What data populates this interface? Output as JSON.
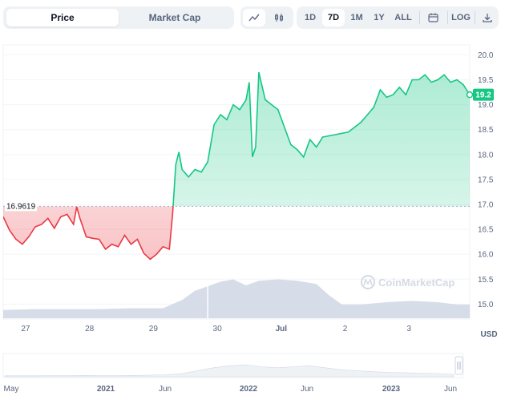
{
  "toolbar": {
    "metric_tabs": [
      {
        "label": "Price",
        "active": true
      },
      {
        "label": "Market Cap",
        "active": false
      }
    ],
    "chart_type_icons": [
      "line-chart-icon",
      "candlestick-icon"
    ],
    "ranges": [
      {
        "label": "1D",
        "active": false
      },
      {
        "label": "7D",
        "active": true
      },
      {
        "label": "1M",
        "active": false
      },
      {
        "label": "1Y",
        "active": false
      },
      {
        "label": "ALL",
        "active": false
      }
    ],
    "calendar_icon": "calendar-icon",
    "log_label": "LOG",
    "download_icon": "download-icon"
  },
  "colors": {
    "up": "#16c784",
    "down": "#ea3943",
    "volume": "#cfd6e4",
    "accent": "#16c784"
  },
  "chart_data": {
    "type": "line",
    "ylabel": "USD",
    "ylim": [
      14.7,
      20.2
    ],
    "y_ticks": [
      "20.0",
      "19.5",
      "19.0",
      "18.5",
      "18.0",
      "17.5",
      "17.0",
      "16.5",
      "16.0",
      "15.5",
      "15.0"
    ],
    "x_ticks": [
      "27",
      "28",
      "29",
      "30",
      "Jul",
      "2",
      "3"
    ],
    "xlim": [
      0,
      7.3
    ],
    "reference_value": "16.9619",
    "current_value": "19.2",
    "watermark": "CoinMarketCap",
    "series": [
      {
        "points": [
          [
            0.0,
            16.75
          ],
          [
            0.1,
            16.48
          ],
          [
            0.2,
            16.3
          ],
          [
            0.3,
            16.2
          ],
          [
            0.4,
            16.35
          ],
          [
            0.5,
            16.55
          ],
          [
            0.6,
            16.6
          ],
          [
            0.7,
            16.72
          ],
          [
            0.8,
            16.52
          ],
          [
            0.9,
            16.75
          ],
          [
            1.0,
            16.8
          ],
          [
            1.1,
            16.6
          ],
          [
            1.15,
            16.95
          ],
          [
            1.2,
            16.72
          ],
          [
            1.3,
            16.35
          ],
          [
            1.4,
            16.32
          ],
          [
            1.5,
            16.3
          ],
          [
            1.6,
            16.1
          ],
          [
            1.7,
            16.2
          ],
          [
            1.8,
            16.15
          ],
          [
            1.9,
            16.38
          ],
          [
            2.0,
            16.2
          ],
          [
            2.1,
            16.3
          ],
          [
            2.2,
            16.02
          ],
          [
            2.3,
            15.9
          ],
          [
            2.4,
            16.0
          ],
          [
            2.5,
            16.15
          ],
          [
            2.6,
            16.1
          ],
          [
            2.65,
            16.8
          ],
          [
            2.7,
            17.8
          ],
          [
            2.75,
            18.05
          ],
          [
            2.8,
            17.7
          ],
          [
            2.9,
            17.55
          ],
          [
            3.0,
            17.7
          ],
          [
            3.1,
            17.65
          ],
          [
            3.2,
            17.85
          ],
          [
            3.3,
            18.6
          ],
          [
            3.4,
            18.8
          ],
          [
            3.5,
            18.7
          ],
          [
            3.6,
            19.0
          ],
          [
            3.7,
            18.9
          ],
          [
            3.8,
            19.1
          ],
          [
            3.85,
            19.45
          ],
          [
            3.9,
            17.95
          ],
          [
            3.95,
            18.15
          ],
          [
            4.0,
            19.65
          ],
          [
            4.1,
            19.1
          ],
          [
            4.2,
            19.0
          ],
          [
            4.3,
            18.9
          ],
          [
            4.4,
            18.55
          ],
          [
            4.5,
            18.2
          ],
          [
            4.6,
            18.1
          ],
          [
            4.7,
            17.95
          ],
          [
            4.8,
            18.3
          ],
          [
            4.9,
            18.15
          ],
          [
            5.0,
            18.35
          ],
          [
            5.2,
            18.4
          ],
          [
            5.4,
            18.45
          ],
          [
            5.6,
            18.65
          ],
          [
            5.7,
            18.8
          ],
          [
            5.8,
            18.95
          ],
          [
            5.9,
            19.3
          ],
          [
            6.0,
            19.15
          ],
          [
            6.1,
            19.2
          ],
          [
            6.2,
            19.35
          ],
          [
            6.3,
            19.2
          ],
          [
            6.4,
            19.5
          ],
          [
            6.5,
            19.5
          ],
          [
            6.6,
            19.6
          ],
          [
            6.7,
            19.45
          ],
          [
            6.8,
            19.5
          ],
          [
            6.9,
            19.6
          ],
          [
            7.0,
            19.45
          ],
          [
            7.1,
            19.5
          ],
          [
            7.2,
            19.4
          ],
          [
            7.3,
            19.2
          ]
        ]
      }
    ],
    "volume": [
      [
        0.0,
        0.18
      ],
      [
        0.5,
        0.2
      ],
      [
        1.0,
        0.2
      ],
      [
        1.5,
        0.2
      ],
      [
        2.0,
        0.22
      ],
      [
        2.5,
        0.22
      ],
      [
        2.8,
        0.4
      ],
      [
        3.0,
        0.6
      ],
      [
        3.2,
        0.7
      ],
      [
        3.4,
        0.8
      ],
      [
        3.6,
        0.85
      ],
      [
        3.8,
        0.72
      ],
      [
        4.0,
        0.82
      ],
      [
        4.3,
        0.85
      ],
      [
        4.6,
        0.82
      ],
      [
        4.9,
        0.75
      ],
      [
        5.1,
        0.5
      ],
      [
        5.3,
        0.3
      ],
      [
        5.6,
        0.3
      ],
      [
        6.0,
        0.35
      ],
      [
        6.4,
        0.38
      ],
      [
        6.8,
        0.35
      ],
      [
        7.1,
        0.3
      ],
      [
        7.3,
        0.3
      ]
    ],
    "navigator_x_ticks": [
      "May",
      "2021",
      "Jun",
      "2022",
      "Jun",
      "2023",
      "Jun"
    ]
  }
}
